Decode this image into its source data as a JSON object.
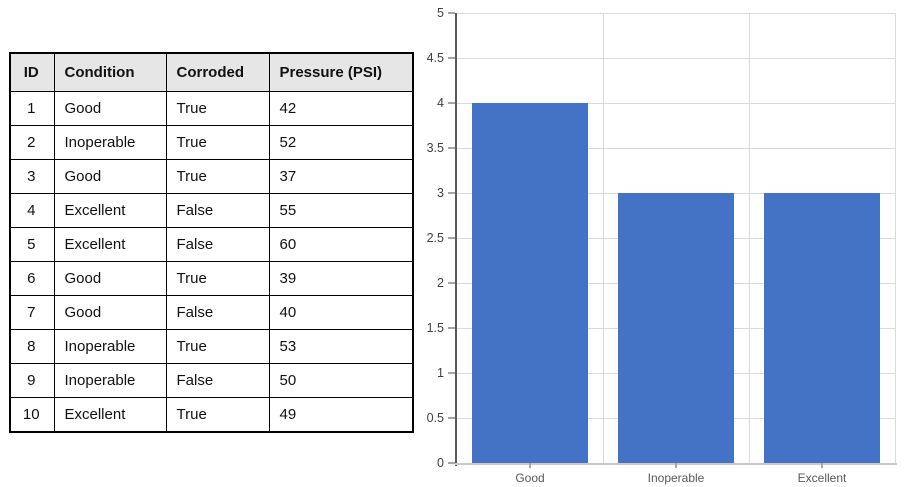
{
  "table": {
    "headers": [
      "ID",
      "Condition",
      "Corroded",
      "Pressure (PSI)"
    ],
    "rows": [
      [
        "1",
        "Good",
        "True",
        "42"
      ],
      [
        "2",
        "Inoperable",
        "True",
        "52"
      ],
      [
        "3",
        "Good",
        "True",
        "37"
      ],
      [
        "4",
        "Excellent",
        "False",
        "55"
      ],
      [
        "5",
        "Excellent",
        "False",
        "60"
      ],
      [
        "6",
        "Good",
        "True",
        "39"
      ],
      [
        "7",
        "Good",
        "False",
        "40"
      ],
      [
        "8",
        "Inoperable",
        "True",
        "53"
      ],
      [
        "9",
        "Inoperable",
        "False",
        "50"
      ],
      [
        "10",
        "Excellent",
        "True",
        "49"
      ]
    ],
    "header_bg": "#E7E6E6",
    "border_color": "#000000"
  },
  "chart_data": {
    "type": "bar",
    "categories": [
      "Good",
      "Inoperable",
      "Excellent"
    ],
    "values": [
      4,
      3,
      3
    ],
    "title": "",
    "xlabel": "",
    "ylabel": "",
    "ylim": [
      0,
      5
    ],
    "ytick_step": 0.5,
    "ytick_labels": [
      "0",
      "0.5",
      "1",
      "1.5",
      "2",
      "2.5",
      "3",
      "3.5",
      "4",
      "4.5",
      "5"
    ],
    "grid": true,
    "legend": "none",
    "bar_color": "#4472C4",
    "gridline_color": "#D9D9D9",
    "yaxis_color": "#595959",
    "xaxis_color": "#C9C9C9",
    "tick_color": "#A6A6A6",
    "ylabel_color": "#3F3F3F",
    "xlabel_color": "#595959"
  }
}
